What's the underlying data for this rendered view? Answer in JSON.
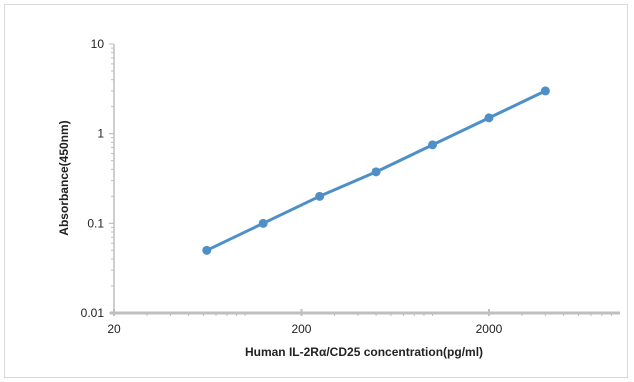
{
  "chart_data": {
    "type": "line",
    "title": "",
    "xlabel": "Human IL-2Rα/CD25 concentration(pg/ml)",
    "ylabel": "Absorbance(450nm)",
    "xscale": "log",
    "yscale": "log",
    "xlim": [
      20,
      10000
    ],
    "ylim": [
      0.01,
      10
    ],
    "x_tick_labels": [
      "20",
      "200",
      "2000"
    ],
    "y_tick_labels": [
      "0.01",
      "0.1",
      "1",
      "10"
    ],
    "grid": false,
    "legend": "none",
    "series": [
      {
        "x": [
          62.5,
          125,
          250,
          500,
          1000,
          2000,
          4000
        ],
        "values": [
          0.05,
          0.1,
          0.2,
          0.375,
          0.75,
          1.5,
          3.0
        ]
      }
    ],
    "colors": {
      "line": "#4f8fc8",
      "marker": "#4f8fc8",
      "axis": "#bfbfbf"
    }
  }
}
